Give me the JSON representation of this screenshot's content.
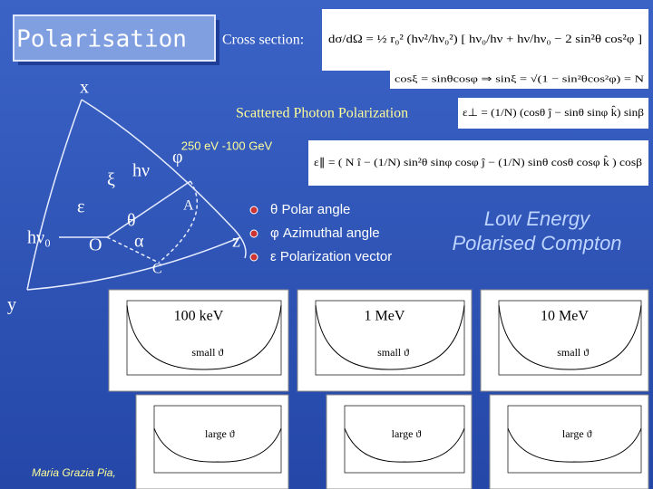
{
  "title": "Polarisation",
  "cross_section_label": "Cross section:",
  "formulas": {
    "cross_section": "dσ/dΩ = ½ r₀² (hν²/hν₀²) [ hν₀/hν + hν/hν₀ − 2 sin²θ cos²φ ]",
    "angle_relation": "cosξ = sinθcosφ  ⇒  sinξ = √(1 − sin²θcos²φ) = N",
    "perpendicular": "ε⊥ = (1/N) (cosθ ĵ − sinθ sinφ k̂) sinβ",
    "parallel": "ε∥ = ( N î − (1/N) sin²θ sinφ cosφ ĵ − (1/N) sinθ cosθ cosφ k̂ ) cosβ"
  },
  "scattered_label": "Scattered Photon Polarization",
  "energy_range": "250 eV -100 GeV",
  "diagram": {
    "x": "x",
    "y": "y",
    "z": "z",
    "incoming": "hν₀",
    "epsilon": "ε",
    "xi": "ξ",
    "outgoing": "hν",
    "phi": "φ",
    "theta": "θ",
    "alpha": "α",
    "origin": "O",
    "point_a": "A",
    "point_c": "C"
  },
  "bullets": [
    "θ Polar angle",
    "φ Azimuthal angle",
    "ε Polarization vector"
  ],
  "heading": [
    "Low Energy",
    "Polarised Compton"
  ],
  "plots": [
    {
      "energy": "100 keV",
      "small": "small ϑ",
      "large": "large ϑ"
    },
    {
      "energy": "1 MeV",
      "small": "small ϑ",
      "large": "large ϑ"
    },
    {
      "energy": "10 MeV",
      "small": "small ϑ",
      "large": "large ϑ"
    }
  ],
  "footer": "Maria Grazia Pia,"
}
